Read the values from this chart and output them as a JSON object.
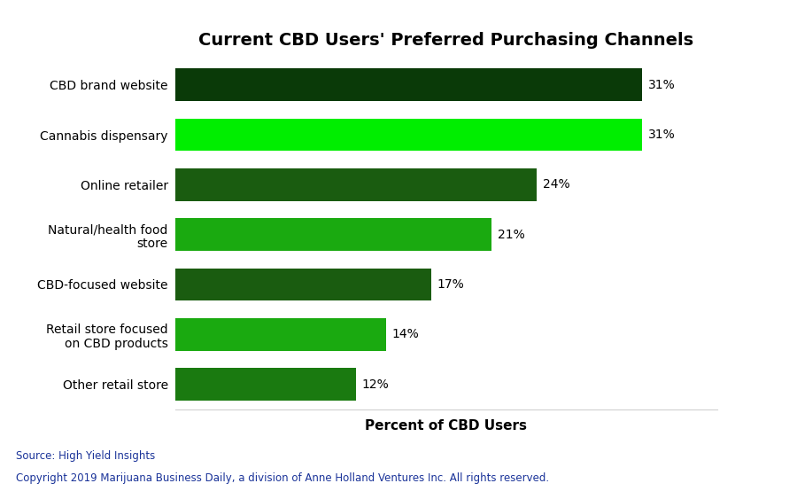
{
  "title": "Current CBD Users' Preferred Purchasing Channels",
  "categories": [
    "Other retail store",
    "Retail store focused\non CBD products",
    "CBD-focused website",
    "Natural/health food\nstore",
    "Online retailer",
    "Cannabis dispensary",
    "CBD brand website"
  ],
  "values": [
    12,
    14,
    17,
    21,
    24,
    31,
    31
  ],
  "bar_colors": [
    "#1a7a10",
    "#1aaa10",
    "#1a5c10",
    "#1aaa10",
    "#1a5c10",
    "#00ee00",
    "#0a3a08"
  ],
  "label_values": [
    "12%",
    "14%",
    "17%",
    "21%",
    "24%",
    "31%",
    "31%"
  ],
  "xlabel": "Percent of CBD Users",
  "xlim": [
    0,
    36
  ],
  "source_text": "Source: High Yield Insights",
  "copyright_text": "Copyright 2019 Marijuana Business Daily, a division of Anne Holland Ventures Inc. All rights reserved.",
  "background_color": "#ffffff",
  "grid_color": "#d0d0d0",
  "title_fontsize": 14,
  "label_fontsize": 10,
  "tick_fontsize": 10,
  "source_fontsize": 8.5,
  "source_color": "#1a3399",
  "bar_height": 0.65
}
